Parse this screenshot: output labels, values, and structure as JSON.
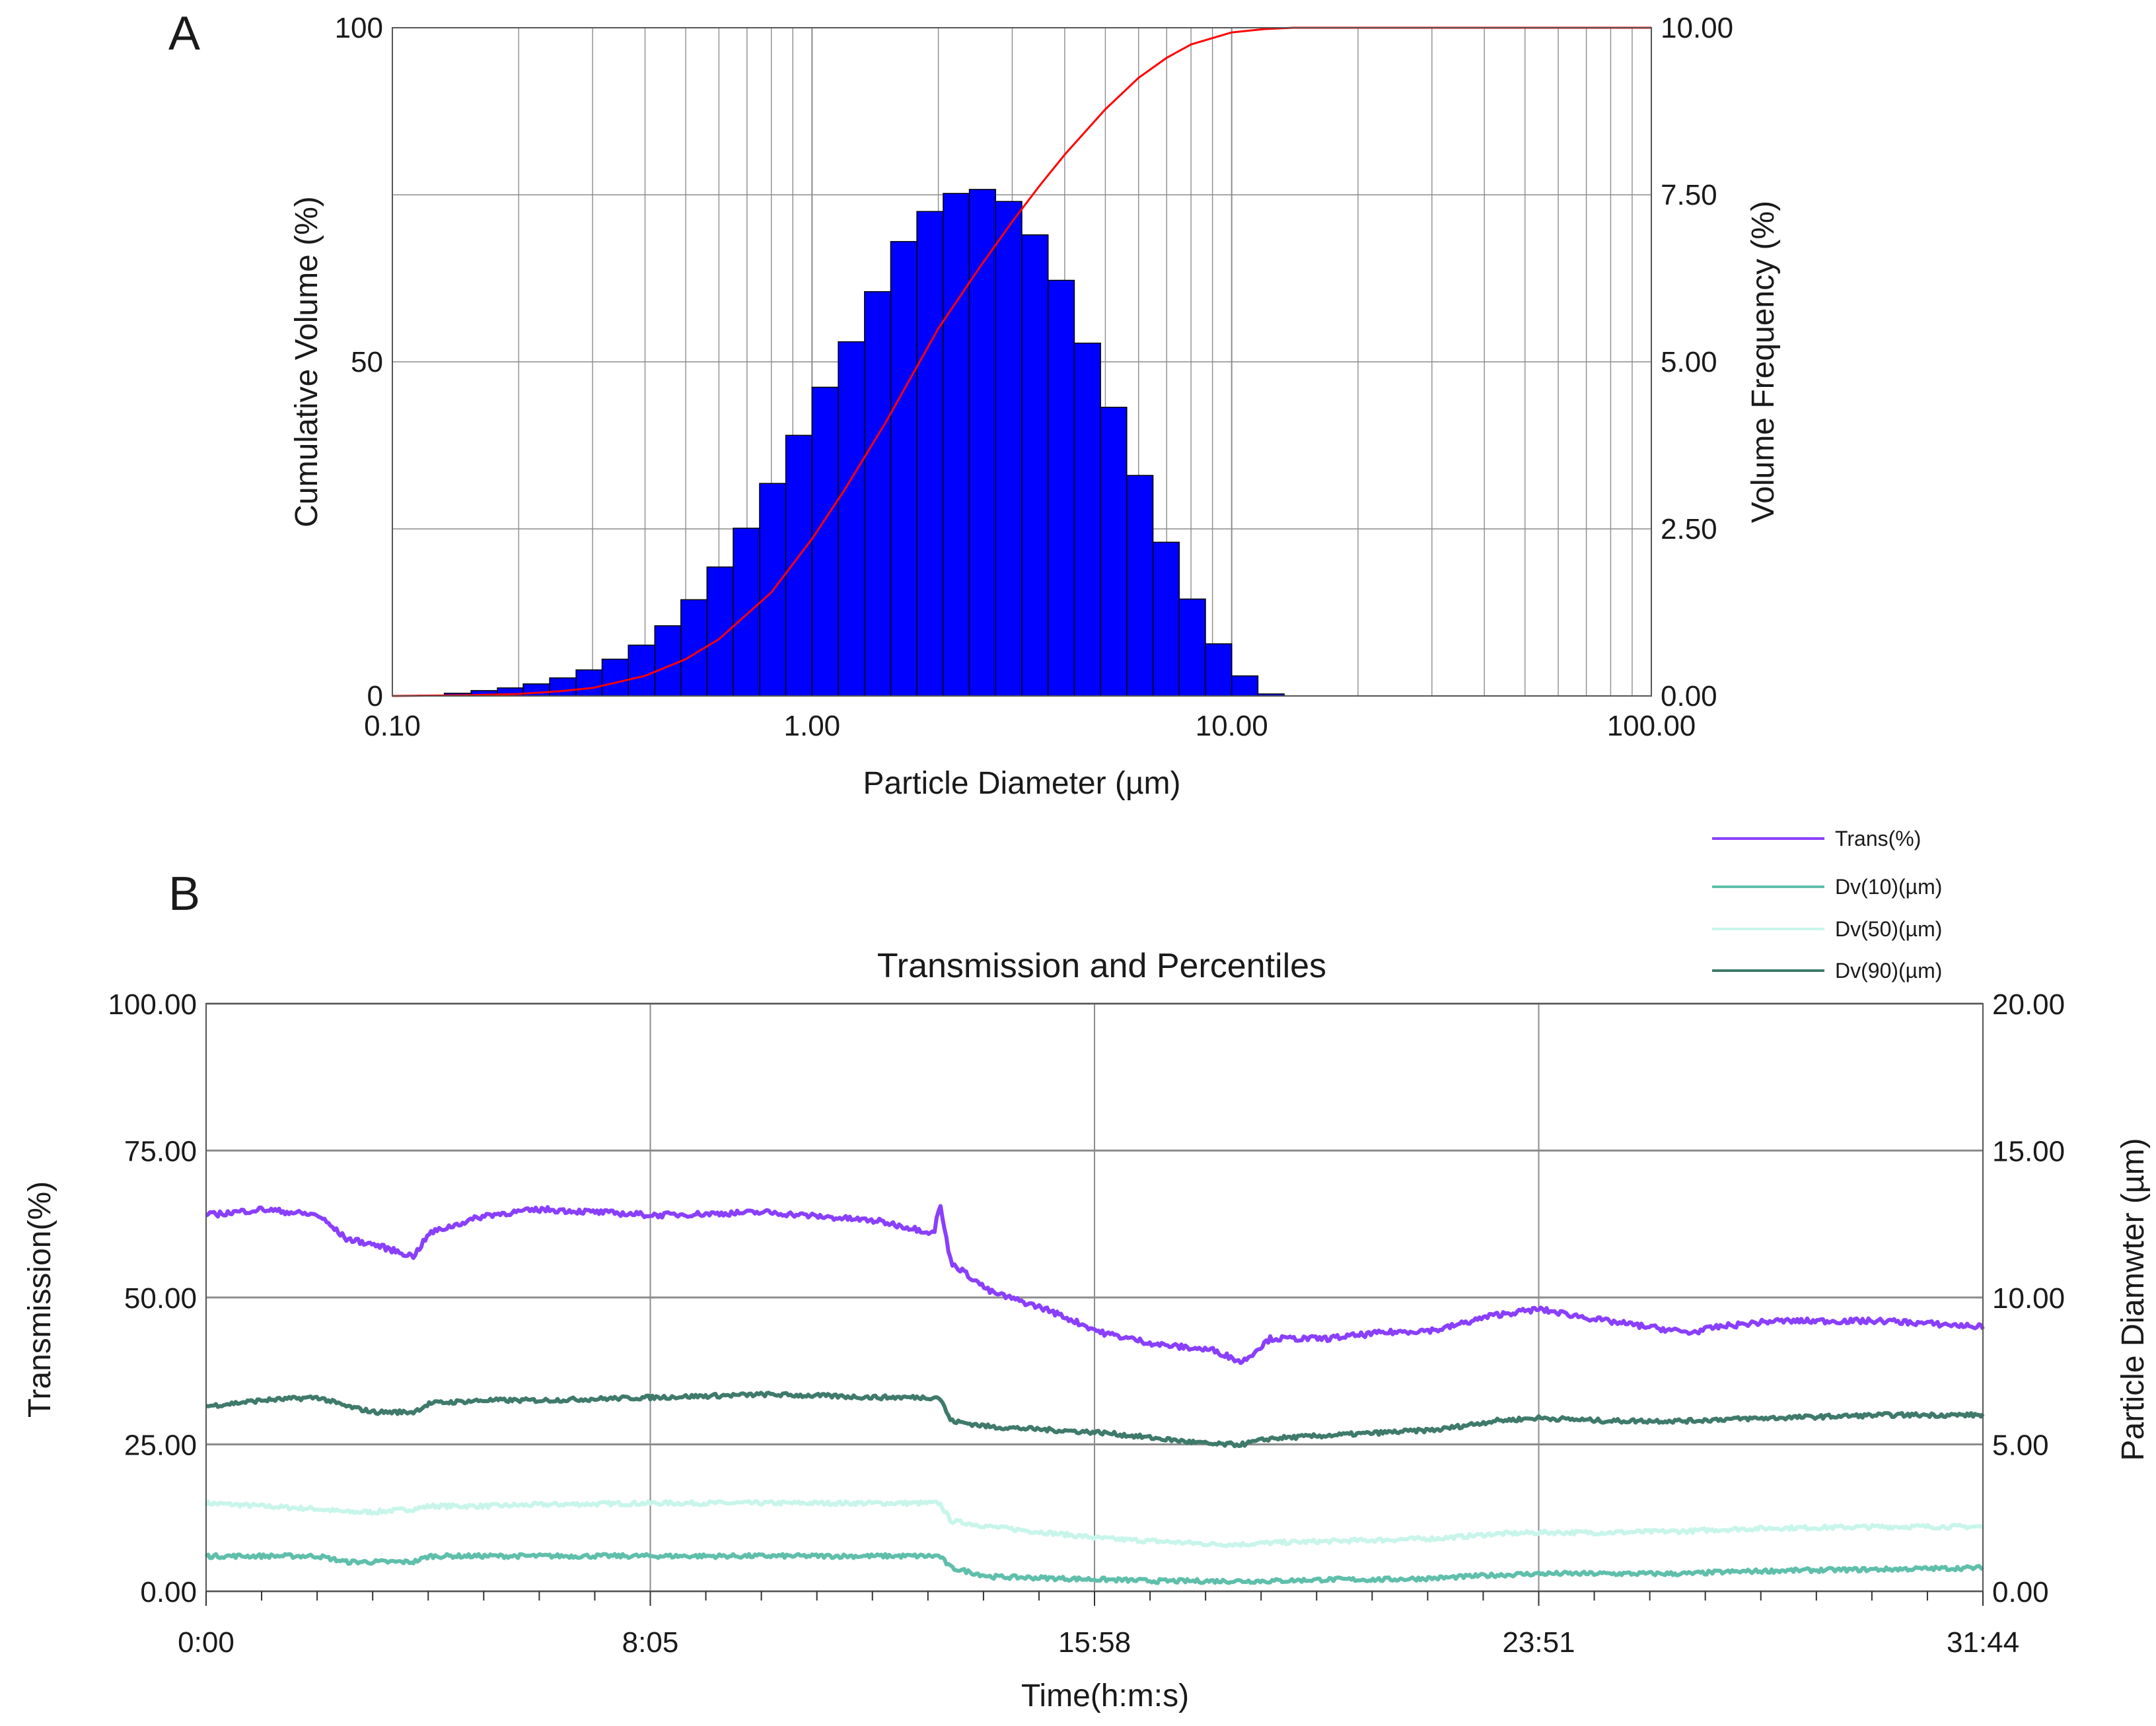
{
  "colors": {
    "bars": "#0000ff",
    "bar_edges": "#000000",
    "cumulative_curve": "#ff0000",
    "grid": "#8c8c8c",
    "trans": "#8a3ffc",
    "dv10": "#5fbfaa",
    "dv50": "#c8f5ea",
    "dv90": "#3f7a6b"
  },
  "chart_data": [
    {
      "panel": "A",
      "type": "bar",
      "xlabel": "Particle Diameter (µm)",
      "ylabel": "Cumulative Volume (%)",
      "y2label": "Volume Frequency (%)",
      "xscale": "log",
      "xlim": [
        0.1,
        100
      ],
      "ylim": [
        0,
        100
      ],
      "y2lim": [
        0,
        10
      ],
      "x_ticks": [
        "0.10",
        "1.00",
        "10.00",
        "100.00"
      ],
      "y_ticks": [
        "0",
        "50",
        "100"
      ],
      "y2_ticks": [
        "0.00",
        "2.50",
        "5.00",
        "7.50",
        "10.00"
      ],
      "grid": true,
      "bin_edges": [
        0.1,
        0.115,
        0.133,
        0.154,
        0.178,
        0.205,
        0.237,
        0.274,
        0.316,
        0.365,
        0.422,
        0.487,
        0.562,
        0.649,
        0.75,
        0.866,
        1.0,
        1.155,
        1.334,
        1.54,
        1.778,
        2.054,
        2.371,
        2.738,
        3.162,
        3.652,
        4.217,
        4.87,
        5.623,
        6.494,
        7.499,
        8.66,
        10.0,
        11.548,
        13.335,
        15.399,
        17.783
      ],
      "frequency": [
        0.0,
        0.01,
        0.04,
        0.08,
        0.12,
        0.18,
        0.27,
        0.39,
        0.55,
        0.76,
        1.05,
        1.44,
        1.93,
        2.51,
        3.18,
        3.9,
        4.62,
        5.3,
        6.05,
        6.8,
        7.25,
        7.52,
        7.58,
        7.4,
        6.9,
        6.22,
        5.28,
        4.32,
        3.3,
        2.3,
        1.45,
        0.78,
        0.3,
        0.03,
        0.0,
        0.0
      ],
      "cumulative": {
        "x": [
          0.1,
          0.15,
          0.2,
          0.25,
          0.3,
          0.4,
          0.5,
          0.6,
          0.8,
          1.0,
          1.2,
          1.5,
          2.0,
          2.5,
          3.0,
          3.5,
          4.0,
          5.0,
          6.0,
          7.0,
          8.0,
          10.0,
          12.0,
          14.0,
          16.0,
          20.0,
          100.0
        ],
        "y": [
          0,
          0.1,
          0.3,
          0.7,
          1.2,
          3.0,
          5.5,
          8.5,
          15.5,
          23.5,
          31.0,
          41.0,
          55.0,
          64.0,
          71.0,
          76.5,
          81.0,
          87.8,
          92.5,
          95.5,
          97.5,
          99.3,
          99.8,
          100,
          100,
          100,
          100
        ]
      }
    },
    {
      "panel": "B",
      "type": "line",
      "title": "Transmission and Percentiles",
      "xlabel": "Time(h:m:s)",
      "ylabel": "Transmission(%)",
      "y2label": "Particle Diamwter (µm)",
      "x_ticks": [
        "0:00",
        "8:05",
        "15:58",
        "23:51",
        "31:44"
      ],
      "y_ticks": [
        "0.00",
        "25.00",
        "50.00",
        "75.00",
        "100.00"
      ],
      "y2_ticks": [
        "0.00",
        "5.00",
        "10.00",
        "15.00",
        "20.00"
      ],
      "ylim": [
        0,
        100
      ],
      "y2lim": [
        0,
        20
      ],
      "grid": true,
      "legend_position": "top-right",
      "x_minutes": [
        0,
        1,
        2,
        2.5,
        3,
        3.7,
        4,
        5,
        6,
        8,
        10,
        12,
        13,
        13.1,
        13.3,
        14,
        15,
        16,
        17,
        18,
        18.5,
        19,
        20,
        21,
        22,
        23,
        23.8,
        25,
        26.5,
        27,
        28,
        30,
        31.73
      ],
      "series": [
        {
          "name": "Trans(%)",
          "axis": "left",
          "values": [
            64,
            65,
            64,
            60,
            59,
            57,
            61,
            64,
            65,
            64,
            64.5,
            63,
            61,
            66,
            56,
            51,
            48,
            44,
            42,
            41,
            39,
            43,
            43,
            44,
            44.5,
            47,
            48,
            46,
            44,
            45,
            46,
            46,
            45
          ]
        },
        {
          "name": "Dv(10)(µm)",
          "axis": "right",
          "values": [
            1.2,
            1.2,
            1.2,
            1.0,
            1.0,
            1.0,
            1.2,
            1.2,
            1.2,
            1.2,
            1.2,
            1.2,
            1.2,
            1.2,
            0.8,
            0.5,
            0.45,
            0.4,
            0.35,
            0.35,
            0.35,
            0.35,
            0.4,
            0.4,
            0.45,
            0.55,
            0.6,
            0.6,
            0.6,
            0.65,
            0.7,
            0.75,
            0.8
          ]
        },
        {
          "name": "Dv(50)(µm)",
          "axis": "right",
          "values": [
            3.0,
            2.9,
            2.8,
            2.7,
            2.7,
            2.8,
            2.9,
            2.9,
            2.95,
            3.0,
            3.0,
            3.0,
            3.0,
            3.0,
            2.4,
            2.2,
            2.0,
            1.8,
            1.7,
            1.6,
            1.6,
            1.65,
            1.7,
            1.75,
            1.8,
            1.95,
            2.0,
            2.0,
            2.05,
            2.1,
            2.15,
            2.2,
            2.2
          ]
        },
        {
          "name": "Dv(90)(µm)",
          "axis": "right",
          "values": [
            6.3,
            6.5,
            6.6,
            6.3,
            6.1,
            6.1,
            6.4,
            6.5,
            6.5,
            6.6,
            6.7,
            6.6,
            6.6,
            6.6,
            5.8,
            5.6,
            5.5,
            5.4,
            5.2,
            5.0,
            5.0,
            5.2,
            5.3,
            5.4,
            5.5,
            5.8,
            5.9,
            5.8,
            5.8,
            5.85,
            5.9,
            6.0,
            6.0
          ]
        }
      ]
    }
  ]
}
